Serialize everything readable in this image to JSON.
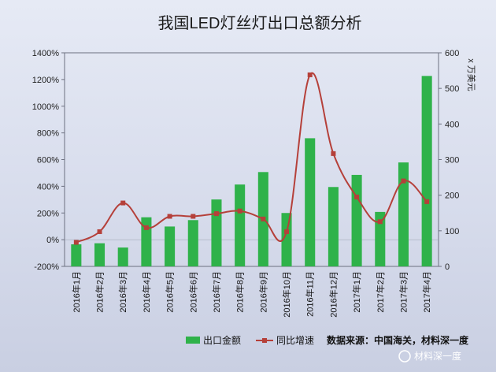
{
  "chart_data": {
    "type": "bar",
    "title": "我国LED灯丝灯出口总额分析",
    "categories": [
      "2016年1月",
      "2016年2月",
      "2016年3月",
      "2016年4月",
      "2016年5月",
      "2016年6月",
      "2016年7月",
      "2016年8月",
      "2016年9月",
      "2016年10月",
      "2016年11月",
      "2016年12月",
      "2017年1月",
      "2017年2月",
      "2017年3月",
      "2017年4月"
    ],
    "series": [
      {
        "name": "出口金额",
        "kind": "bar",
        "axis": "right",
        "color": "#2fb24a",
        "values": [
          62,
          65,
          53,
          138,
          112,
          130,
          188,
          230,
          265,
          150,
          360,
          223,
          257,
          153,
          292,
          535
        ]
      },
      {
        "name": "同比增速",
        "kind": "line",
        "axis": "left",
        "color": "#b5403a",
        "values": [
          -20,
          60,
          275,
          90,
          175,
          175,
          195,
          215,
          155,
          60,
          1235,
          645,
          320,
          135,
          440,
          285
        ]
      }
    ],
    "y_left": {
      "ticks": [
        "-200%",
        "0%",
        "200%",
        "400%",
        "600%",
        "800%",
        "1000%",
        "1200%",
        "1400%"
      ],
      "ylim": [
        -200,
        1400
      ]
    },
    "y_right": {
      "ticks": [
        "0",
        "100",
        "200",
        "300",
        "400",
        "500",
        "600"
      ],
      "ylim": [
        0,
        600
      ],
      "label": "x 万美元"
    },
    "legend_position": "bottom",
    "grid": false
  },
  "source_note": "数据来源：中国海关，材料深一度",
  "watermark_text": "材料深一度"
}
